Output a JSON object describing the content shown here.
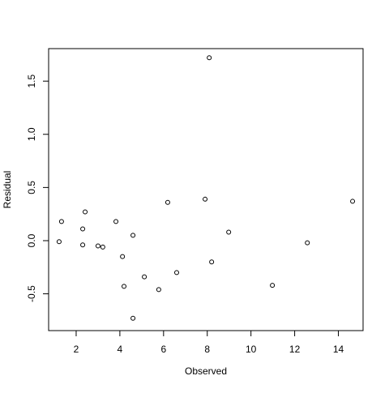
{
  "chart_data": {
    "type": "scatter",
    "x_label": "Observed",
    "y_label": "Residual",
    "x": [
      1.22,
      1.33,
      2.3,
      2.3,
      2.41,
      3.0,
      3.22,
      3.82,
      4.12,
      4.19,
      4.6,
      4.6,
      5.12,
      5.78,
      6.19,
      6.6,
      7.9,
      8.09,
      8.2,
      8.98,
      10.98,
      12.58,
      14.65
    ],
    "values": [
      -0.01,
      0.18,
      0.11,
      -0.04,
      0.27,
      -0.05,
      -0.06,
      0.18,
      -0.15,
      -0.43,
      0.05,
      -0.73,
      -0.34,
      -0.46,
      0.36,
      -0.3,
      0.39,
      1.72,
      -0.2,
      0.08,
      -0.42,
      -0.02,
      0.37
    ],
    "color": "#000000",
    "xlim": [
      0.74,
      15.13
    ],
    "ylim": [
      -0.846,
      1.806
    ],
    "xticks": [
      2,
      4,
      6,
      8,
      10,
      12,
      14
    ],
    "yticks": [
      -0.5,
      {
        "value": 0,
        "label": "0.0"
      },
      0.5,
      {
        "value": 1,
        "label": "1.0"
      },
      1.5
    ]
  }
}
